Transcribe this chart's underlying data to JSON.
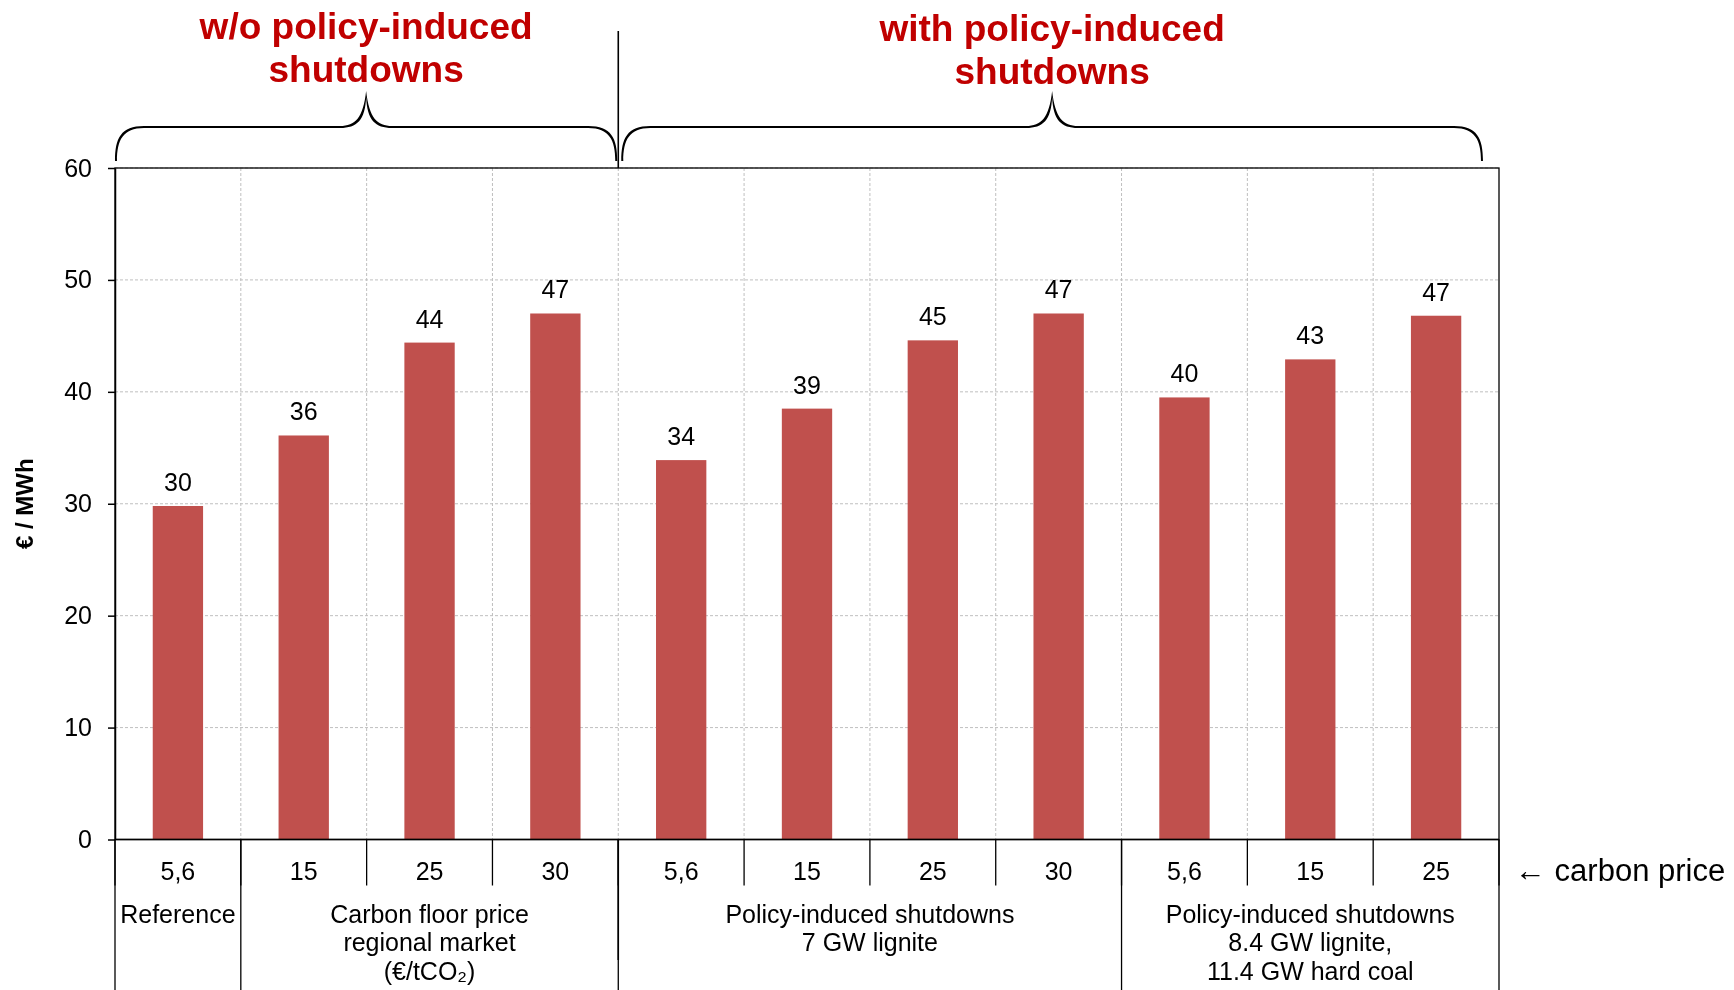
{
  "chart_data": {
    "type": "bar",
    "categories": [
      "5,6",
      "15",
      "25",
      "30",
      "5,6",
      "15",
      "25",
      "30",
      "5,6",
      "15",
      "25"
    ],
    "values": [
      29.8,
      36.1,
      44.4,
      47.0,
      33.9,
      38.5,
      44.6,
      47.0,
      39.5,
      42.9,
      46.8
    ],
    "value_labels": [
      "30",
      "36",
      "44",
      "47",
      "34",
      "39",
      "45",
      "47",
      "40",
      "43",
      "47"
    ],
    "color": "#c0504d",
    "ylabel": "€ / MWh",
    "ylim": [
      0,
      60
    ],
    "yticks": [
      0,
      10,
      20,
      30,
      40,
      50,
      60
    ],
    "grid": true,
    "annotations": [
      "w/o policy-induced shutdowns",
      "with policy-induced shutdowns",
      "← carbon price",
      "Reference",
      "Carbon floor price regional market (€/tCO₂)",
      "Policy-induced shutdowns 7 GW lignite",
      "Policy-induced shutdowns 8.4 GW lignite, 11.4 GW hard coal"
    ]
  }
}
